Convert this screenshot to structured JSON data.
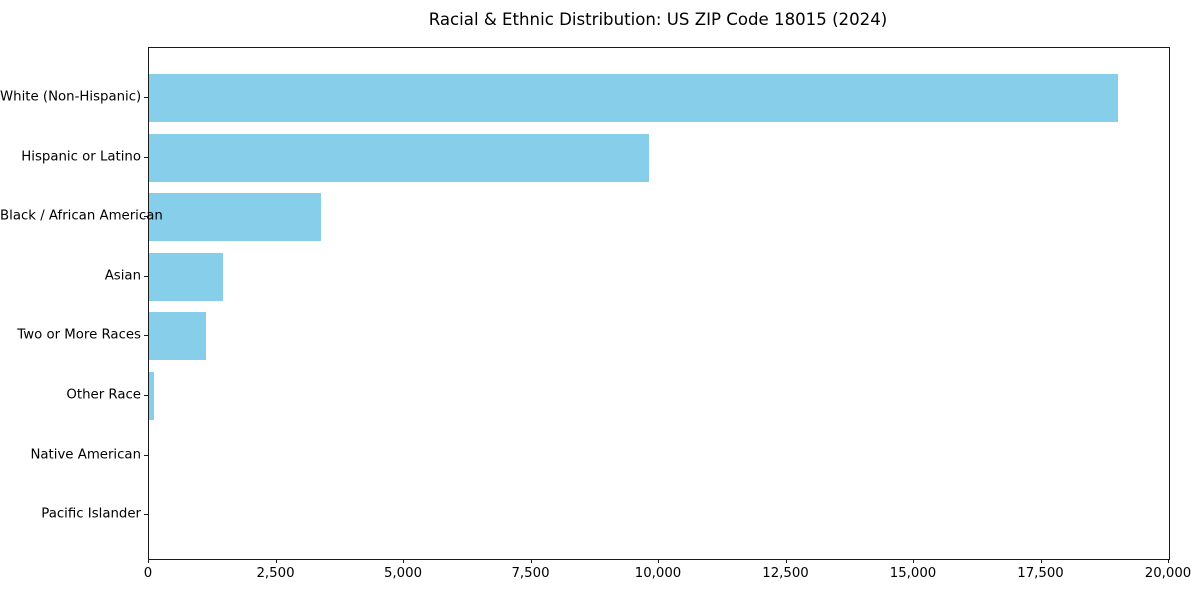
{
  "chart_data": {
    "type": "bar",
    "orientation": "horizontal",
    "title": "Racial & Ethnic Distribution: US ZIP Code 18015 (2024)",
    "categories": [
      "White (Non-Hispanic)",
      "Hispanic or Latino",
      "Black / African American",
      "Asian",
      "Two or More Races",
      "Other Race",
      "Native American",
      "Pacific Islander"
    ],
    "values": [
      19000,
      9800,
      3370,
      1450,
      1120,
      90,
      0,
      0
    ],
    "xlabel": "",
    "ylabel": "",
    "xlim": [
      0,
      20000
    ],
    "xticks": [
      0,
      2500,
      5000,
      7500,
      10000,
      12500,
      15000,
      17500,
      20000
    ],
    "xtick_labels": [
      "0",
      "2,500",
      "5,000",
      "7,500",
      "10,000",
      "12,500",
      "15,000",
      "17,500",
      "20,000"
    ],
    "bar_color": "#87CEEB",
    "text_color": "#000000",
    "spine_color": "#1a1a1a",
    "grid": false,
    "legend": "none"
  }
}
